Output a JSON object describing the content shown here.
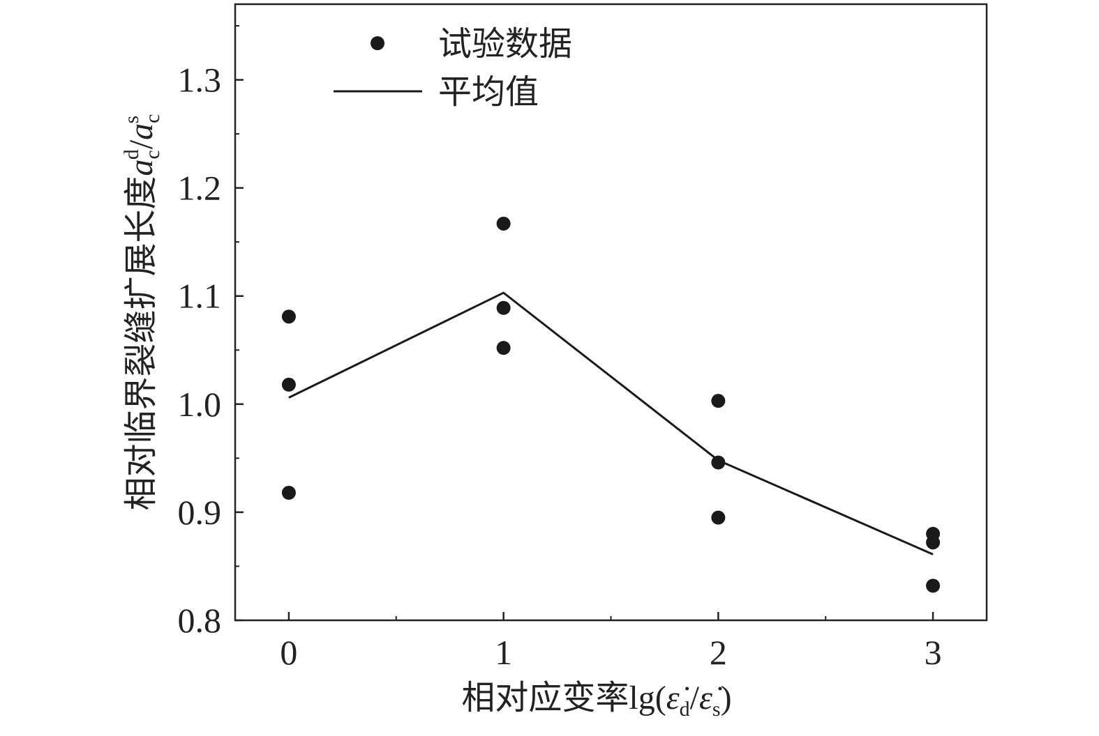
{
  "chart_data": {
    "type": "scatter",
    "xlabel": "相对应变率lg(ε̇d/ε̇s)",
    "xlabel_parts": {
      "prefix": "相对应变率",
      "func": "lg(",
      "num": "ε̇",
      "num_sub": "d",
      "slash": "/",
      "den": "ε̇",
      "den_sub": "s",
      "close": ")"
    },
    "ylabel": "相对临界裂缝扩展长度acd/acs",
    "ylabel_parts": {
      "prefix": "相对临界裂缝扩展长度",
      "sym1": "a",
      "sub1": "c",
      "sup1": "d",
      "slash": "/",
      "sym2": "a",
      "sub2": "c",
      "sup2": "s"
    },
    "xlim": [
      -0.25,
      3.25
    ],
    "ylim": [
      0.8,
      1.37
    ],
    "x_ticks": [
      0,
      1,
      2,
      3
    ],
    "x_tick_labels": [
      "0",
      "1",
      "2",
      "3"
    ],
    "x_minor_ticks": [
      0.5,
      1.5,
      2.5
    ],
    "y_ticks": [
      0.8,
      0.9,
      1.0,
      1.1,
      1.2,
      1.3
    ],
    "y_tick_labels": [
      "0.8",
      "0.9",
      "1.0",
      "1.1",
      "1.2",
      "1.3"
    ],
    "y_minor_ticks": [
      0.85,
      0.95,
      1.05,
      1.15,
      1.25,
      1.35
    ],
    "series": [
      {
        "name": "试验数据",
        "kind": "scatter",
        "color": "#1a1a1a",
        "points": [
          {
            "x": 0,
            "y": 1.081
          },
          {
            "x": 0,
            "y": 1.018
          },
          {
            "x": 0,
            "y": 0.918
          },
          {
            "x": 1,
            "y": 1.167
          },
          {
            "x": 1,
            "y": 1.089
          },
          {
            "x": 1,
            "y": 1.052
          },
          {
            "x": 2,
            "y": 1.003
          },
          {
            "x": 2,
            "y": 0.946
          },
          {
            "x": 2,
            "y": 0.895
          },
          {
            "x": 3,
            "y": 0.88
          },
          {
            "x": 3,
            "y": 0.872
          },
          {
            "x": 3,
            "y": 0.832
          }
        ]
      },
      {
        "name": "平均值",
        "kind": "line",
        "color": "#1a1a1a",
        "points": [
          {
            "x": 0,
            "y": 1.006
          },
          {
            "x": 1,
            "y": 1.103
          },
          {
            "x": 2,
            "y": 0.948
          },
          {
            "x": 3,
            "y": 0.861
          }
        ]
      }
    ],
    "legend": {
      "position": "top-left",
      "entries": [
        {
          "label": "试验数据",
          "marker": "dot"
        },
        {
          "label": "平均值",
          "marker": "line"
        }
      ]
    },
    "grid": false
  }
}
